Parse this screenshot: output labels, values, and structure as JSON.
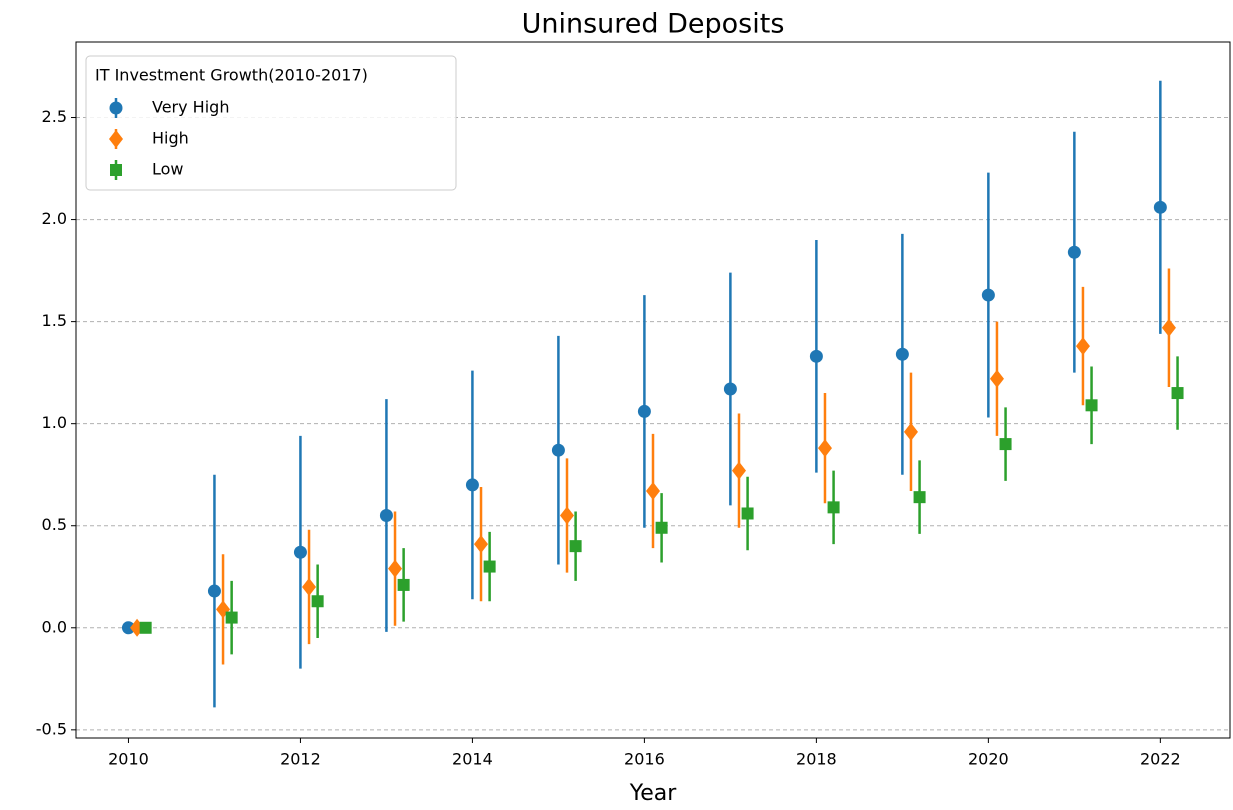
{
  "chart_data": {
    "type": "errorbar",
    "title": "Uninsured Deposits",
    "x_label": "Year",
    "xlim": [
      2009.39,
      2022.81
    ],
    "ylim": [
      -0.54,
      2.87
    ],
    "xticks": [
      2010,
      2012,
      2014,
      2016,
      2018,
      2020,
      2022
    ],
    "yticks": [
      -0.5,
      {
        "value": 0,
        "label": "0.0"
      },
      0.5,
      {
        "value": 1,
        "label": "1.0"
      },
      1.5,
      {
        "value": 2,
        "label": "2.0"
      },
      2.5
    ],
    "grid": "y",
    "legend_position": "upper left",
    "legend_title": "IT Investment Growth(2010-2017)",
    "series": [
      {
        "name": "Very High",
        "color": "#1f77b4",
        "marker": "circle",
        "x": [
          2010,
          2011,
          2012,
          2013,
          2014,
          2015,
          2016,
          2017,
          2018,
          2019,
          2020,
          2021,
          2022
        ],
        "values": [
          0,
          0.18,
          0.37,
          0.55,
          0.7,
          0.87,
          1.06,
          1.17,
          1.33,
          1.34,
          1.63,
          1.84,
          2.06
        ],
        "errors": [
          0,
          0.57,
          0.57,
          0.57,
          0.56,
          0.56,
          0.57,
          0.57,
          0.57,
          0.59,
          0.6,
          0.59,
          0.62
        ]
      },
      {
        "name": "High",
        "color": "#ff7f0e",
        "marker": "diamond",
        "x": [
          2010.1,
          2011.1,
          2012.1,
          2013.1,
          2014.1,
          2015.1,
          2016.1,
          2017.1,
          2018.1,
          2019.1,
          2020.1,
          2021.1,
          2022.1
        ],
        "values": [
          0,
          0.09,
          0.2,
          0.29,
          0.41,
          0.55,
          0.67,
          0.77,
          0.88,
          0.96,
          1.22,
          1.38,
          1.47
        ],
        "errors": [
          0.03,
          0.27,
          0.28,
          0.28,
          0.28,
          0.28,
          0.28,
          0.28,
          0.27,
          0.29,
          0.28,
          0.29,
          0.29
        ]
      },
      {
        "name": "Low",
        "color": "#2ca02c",
        "marker": "square",
        "x": [
          2010.2,
          2011.2,
          2012.2,
          2013.2,
          2014.2,
          2015.2,
          2016.2,
          2017.2,
          2018.2,
          2019.2,
          2020.2,
          2021.2,
          2022.2
        ],
        "values": [
          0,
          0.05,
          0.13,
          0.21,
          0.3,
          0.4,
          0.49,
          0.56,
          0.59,
          0.64,
          0.9,
          1.09,
          1.15
        ],
        "errors": [
          0.01,
          0.18,
          0.18,
          0.18,
          0.17,
          0.17,
          0.17,
          0.18,
          0.18,
          0.18,
          0.18,
          0.19,
          0.18
        ]
      }
    ]
  }
}
